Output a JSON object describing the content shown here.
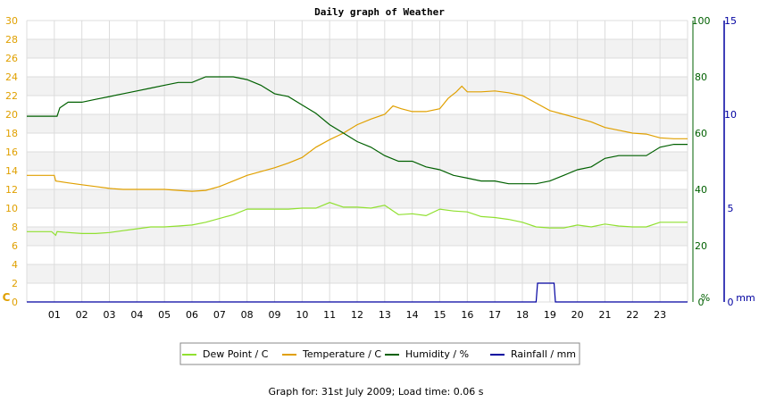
{
  "chart_data": {
    "type": "line",
    "title": "Daily graph of Weather",
    "x": {
      "range": [
        0,
        24
      ],
      "tick_labels": [
        "01",
        "02",
        "03",
        "04",
        "05",
        "06",
        "07",
        "08",
        "09",
        "10",
        "11",
        "12",
        "13",
        "14",
        "15",
        "16",
        "17",
        "18",
        "19",
        "20",
        "21",
        "22",
        "23"
      ]
    },
    "axes": {
      "left": {
        "label": "C",
        "range": [
          0,
          30
        ],
        "ticks": [
          "0",
          "2",
          "4",
          "6",
          "8",
          "10",
          "12",
          "14",
          "16",
          "18",
          "20",
          "22",
          "24",
          "26",
          "28",
          "30"
        ],
        "color": "#e0a000"
      },
      "right1": {
        "label": "%",
        "range": [
          0,
          100
        ],
        "ticks": [
          "0",
          "20",
          "40",
          "60",
          "80",
          "100"
        ],
        "color": "#006000"
      },
      "right2": {
        "label": "mm",
        "range": [
          0,
          15
        ],
        "ticks": [
          "0",
          "5",
          "10",
          "15"
        ],
        "color": "#0000a0"
      }
    },
    "grid": true,
    "legend_position": "bottom-center",
    "series": [
      {
        "name": "Dew Point / C",
        "axis": "left",
        "color": "#90e030",
        "points": [
          [
            0,
            7.5
          ],
          [
            0.9,
            7.5
          ],
          [
            1.05,
            7.1
          ],
          [
            1.1,
            7.5
          ],
          [
            1.5,
            7.4
          ],
          [
            2.0,
            7.3
          ],
          [
            2.5,
            7.3
          ],
          [
            3.0,
            7.4
          ],
          [
            3.5,
            7.6
          ],
          [
            4.0,
            7.8
          ],
          [
            4.5,
            8.0
          ],
          [
            5.0,
            8.0
          ],
          [
            5.5,
            8.1
          ],
          [
            6.0,
            8.2
          ],
          [
            6.5,
            8.5
          ],
          [
            7.0,
            8.9
          ],
          [
            7.5,
            9.3
          ],
          [
            8.0,
            9.9
          ],
          [
            8.5,
            9.9
          ],
          [
            9.0,
            9.9
          ],
          [
            9.5,
            9.9
          ],
          [
            10.0,
            10.0
          ],
          [
            10.5,
            10.0
          ],
          [
            11.0,
            10.6
          ],
          [
            11.5,
            10.1
          ],
          [
            12.0,
            10.1
          ],
          [
            12.5,
            10.0
          ],
          [
            13.0,
            10.3
          ],
          [
            13.5,
            9.3
          ],
          [
            14.0,
            9.4
          ],
          [
            14.5,
            9.2
          ],
          [
            15.0,
            9.9
          ],
          [
            15.5,
            9.7
          ],
          [
            16.0,
            9.6
          ],
          [
            16.5,
            9.1
          ],
          [
            17.0,
            9.0
          ],
          [
            17.5,
            8.8
          ],
          [
            18.0,
            8.5
          ],
          [
            18.5,
            8.0
          ],
          [
            19.0,
            7.9
          ],
          [
            19.5,
            7.9
          ],
          [
            20.0,
            8.2
          ],
          [
            20.5,
            8.0
          ],
          [
            21.0,
            8.3
          ],
          [
            21.5,
            8.1
          ],
          [
            22.0,
            8.0
          ],
          [
            22.5,
            8.0
          ],
          [
            23.0,
            8.5
          ],
          [
            23.5,
            8.5
          ],
          [
            24.0,
            8.5
          ]
        ]
      },
      {
        "name": "Temperature / C",
        "axis": "left",
        "color": "#e0a000",
        "points": [
          [
            0,
            13.5
          ],
          [
            1.0,
            13.5
          ],
          [
            1.05,
            12.9
          ],
          [
            1.5,
            12.7
          ],
          [
            2.0,
            12.5
          ],
          [
            2.5,
            12.3
          ],
          [
            3.0,
            12.1
          ],
          [
            3.5,
            12.0
          ],
          [
            4.0,
            12.0
          ],
          [
            4.5,
            12.0
          ],
          [
            5.0,
            12.0
          ],
          [
            5.5,
            11.9
          ],
          [
            6.0,
            11.8
          ],
          [
            6.5,
            11.9
          ],
          [
            7.0,
            12.3
          ],
          [
            7.5,
            12.9
          ],
          [
            8.0,
            13.5
          ],
          [
            8.5,
            13.9
          ],
          [
            9.0,
            14.3
          ],
          [
            9.5,
            14.8
          ],
          [
            10.0,
            15.4
          ],
          [
            10.5,
            16.5
          ],
          [
            11.0,
            17.3
          ],
          [
            11.5,
            18.0
          ],
          [
            12.0,
            18.9
          ],
          [
            12.5,
            19.5
          ],
          [
            13.0,
            20.0
          ],
          [
            13.3,
            20.9
          ],
          [
            13.6,
            20.6
          ],
          [
            14.0,
            20.3
          ],
          [
            14.5,
            20.3
          ],
          [
            15.0,
            20.6
          ],
          [
            15.3,
            21.7
          ],
          [
            15.6,
            22.4
          ],
          [
            15.8,
            23.0
          ],
          [
            16.0,
            22.4
          ],
          [
            16.5,
            22.4
          ],
          [
            17.0,
            22.5
          ],
          [
            17.5,
            22.3
          ],
          [
            18.0,
            22.0
          ],
          [
            18.5,
            21.2
          ],
          [
            19.0,
            20.4
          ],
          [
            19.5,
            20.0
          ],
          [
            20.0,
            19.6
          ],
          [
            20.5,
            19.2
          ],
          [
            21.0,
            18.6
          ],
          [
            21.5,
            18.3
          ],
          [
            22.0,
            18.0
          ],
          [
            22.5,
            17.9
          ],
          [
            23.0,
            17.5
          ],
          [
            23.5,
            17.4
          ],
          [
            24.0,
            17.4
          ]
        ]
      },
      {
        "name": "Humidity / %",
        "axis": "right1",
        "color": "#006000",
        "points": [
          [
            0,
            66
          ],
          [
            1.1,
            66
          ],
          [
            1.2,
            69
          ],
          [
            1.5,
            71
          ],
          [
            2.0,
            71
          ],
          [
            2.5,
            72
          ],
          [
            3.0,
            73
          ],
          [
            3.5,
            74
          ],
          [
            4.0,
            75
          ],
          [
            4.5,
            76
          ],
          [
            5.0,
            77
          ],
          [
            5.5,
            78
          ],
          [
            6.0,
            78
          ],
          [
            6.5,
            80
          ],
          [
            7.0,
            80
          ],
          [
            7.5,
            80
          ],
          [
            8.0,
            79
          ],
          [
            8.5,
            77
          ],
          [
            9.0,
            74
          ],
          [
            9.5,
            73
          ],
          [
            10.0,
            70
          ],
          [
            10.5,
            67
          ],
          [
            11.0,
            63
          ],
          [
            11.5,
            60
          ],
          [
            12.0,
            57
          ],
          [
            12.5,
            55
          ],
          [
            13.0,
            52
          ],
          [
            13.5,
            50
          ],
          [
            14.0,
            50
          ],
          [
            14.5,
            48
          ],
          [
            15.0,
            47
          ],
          [
            15.5,
            45
          ],
          [
            16.0,
            44
          ],
          [
            16.5,
            43
          ],
          [
            17.0,
            43
          ],
          [
            17.5,
            42
          ],
          [
            18.0,
            42
          ],
          [
            18.5,
            42
          ],
          [
            19.0,
            43
          ],
          [
            19.5,
            45
          ],
          [
            20.0,
            47
          ],
          [
            20.5,
            48
          ],
          [
            21.0,
            51
          ],
          [
            21.5,
            52
          ],
          [
            22.0,
            52
          ],
          [
            22.5,
            52
          ],
          [
            23.0,
            55
          ],
          [
            23.5,
            56
          ],
          [
            24.0,
            56
          ]
        ]
      },
      {
        "name": "Rainfall / mm",
        "axis": "right2",
        "color": "#0000a0",
        "points": [
          [
            0,
            0
          ],
          [
            18.5,
            0
          ],
          [
            18.55,
            1
          ],
          [
            19.15,
            1
          ],
          [
            19.2,
            0
          ],
          [
            24.0,
            0
          ]
        ]
      }
    ]
  },
  "footer": "Graph for: 31st July 2009; Load time: 0.06 s"
}
